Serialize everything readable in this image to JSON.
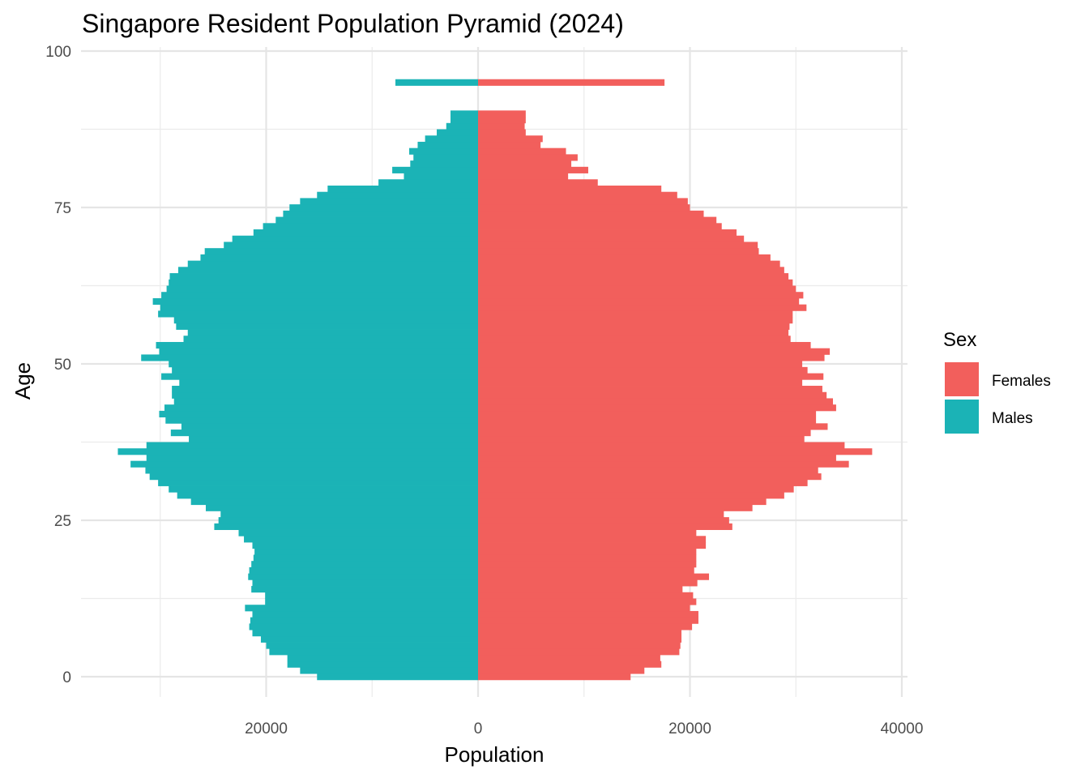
{
  "chart_data": {
    "type": "bar",
    "orientation": "horizontal",
    "title": "Singapore Resident Population Pyramid (2024)",
    "xlabel": "Population",
    "ylabel": "Age",
    "x_tick_labels": [
      "20000",
      "0",
      "20000",
      "40000"
    ],
    "x_tick_values": [
      -20000,
      0,
      20000,
      40000
    ],
    "y_tick_labels": [
      "0",
      "25",
      "50",
      "75",
      "100"
    ],
    "y_tick_values": [
      0,
      25,
      50,
      75,
      100
    ],
    "xlim": [
      -37500,
      40000
    ],
    "ylim": [
      -3.7,
      100
    ],
    "grid": true,
    "legend": {
      "title": "Sex",
      "position": "right",
      "entries": [
        {
          "name": "Females",
          "color": "#F25F5C"
        },
        {
          "name": "Males",
          "color": "#1BB3B6"
        }
      ]
    },
    "ages": [
      0,
      1,
      2,
      3,
      4,
      5,
      6,
      7,
      8,
      9,
      10,
      11,
      12,
      13,
      14,
      15,
      16,
      17,
      18,
      19,
      20,
      21,
      22,
      23,
      24,
      25,
      26,
      27,
      28,
      29,
      30,
      31,
      32,
      33,
      34,
      35,
      36,
      37,
      38,
      39,
      40,
      41,
      42,
      43,
      44,
      45,
      46,
      47,
      48,
      49,
      50,
      51,
      52,
      53,
      54,
      55,
      56,
      57,
      58,
      59,
      60,
      61,
      62,
      63,
      64,
      65,
      66,
      67,
      68,
      69,
      70,
      71,
      72,
      73,
      74,
      75,
      76,
      77,
      78,
      79,
      80,
      81,
      82,
      83,
      84,
      85,
      86,
      87,
      88,
      89,
      90
    ],
    "series": [
      {
        "name": "Males",
        "color": "#1BB3B6",
        "values": [
          -15200,
          -16800,
          -18000,
          -18000,
          -19700,
          -20000,
          -20500,
          -21300,
          -21600,
          -21500,
          -21300,
          -22000,
          -20100,
          -20100,
          -21400,
          -21300,
          -21700,
          -21600,
          -21400,
          -21200,
          -21100,
          -21300,
          -22100,
          -22600,
          -24900,
          -24500,
          -24300,
          -25700,
          -27100,
          -28400,
          -29200,
          -30200,
          -31000,
          -31400,
          -32800,
          -31300,
          -34000,
          -31300,
          -27300,
          -29000,
          -28000,
          -29500,
          -30100,
          -29600,
          -28700,
          -28900,
          -28900,
          -28200,
          -29900,
          -28900,
          -29200,
          -31800,
          -30100,
          -30400,
          -27800,
          -27400,
          -28500,
          -28700,
          -30200,
          -30000,
          -30700,
          -29900,
          -29400,
          -29200,
          -29100,
          -28300,
          -27400,
          -26200,
          -25800,
          -24000,
          -23200,
          -21200,
          -20300,
          -19100,
          -18400,
          -17800,
          -16800,
          -15200,
          -14200,
          -9400,
          -7000,
          -8100,
          -6400,
          -6100,
          -6500,
          -5700,
          -5000,
          -3900,
          -3000,
          -2600,
          -2600
        ],
        "labels_note": "Population values in persons; negative values plotted to the left of zero"
      },
      {
        "name": "Females",
        "color": "#F25F5C",
        "values": [
          14400,
          15700,
          17300,
          17200,
          19000,
          19100,
          19200,
          19200,
          20200,
          20800,
          20800,
          20000,
          20600,
          20300,
          19300,
          20700,
          21800,
          20400,
          20600,
          20600,
          20600,
          21500,
          21500,
          20600,
          24000,
          23700,
          23200,
          25900,
          27200,
          28900,
          29800,
          31100,
          32400,
          32100,
          35000,
          33800,
          37200,
          34600,
          30800,
          31400,
          33000,
          31900,
          31900,
          33800,
          33500,
          32900,
          32500,
          30600,
          32600,
          31100,
          30600,
          32700,
          33200,
          31400,
          29500,
          29300,
          29400,
          29700,
          29700,
          31000,
          30300,
          30700,
          30000,
          29700,
          29300,
          28900,
          28500,
          27600,
          26500,
          26400,
          25100,
          24400,
          23000,
          22500,
          21300,
          20000,
          19800,
          18800,
          17300,
          11300,
          8500,
          10400,
          8800,
          9400,
          8300,
          5900,
          6100,
          4500,
          4400,
          4500,
          4500
        ]
      },
      {
        "name": "Males 90+",
        "color": "#1BB3B6",
        "age_label": "95",
        "values": [
          -7800
        ]
      },
      {
        "name": "Females 90+",
        "color": "#F25F5C",
        "age_label": "95",
        "values": [
          17600
        ]
      }
    ]
  }
}
